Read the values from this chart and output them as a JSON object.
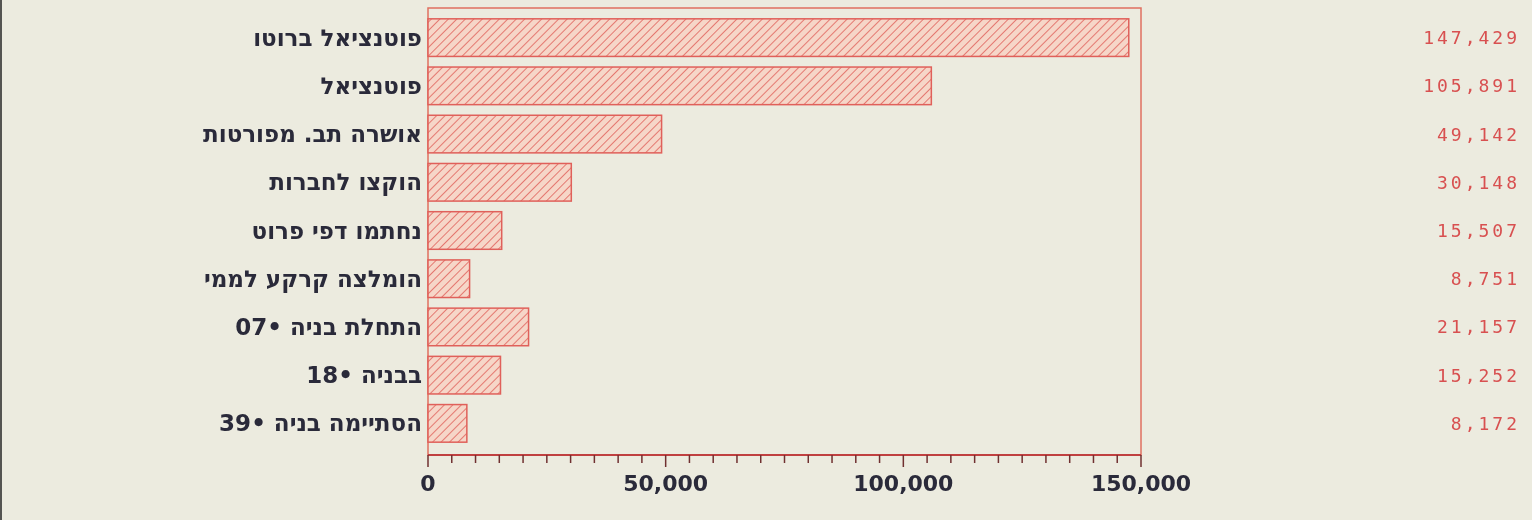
{
  "chart_data": {
    "type": "bar",
    "orientation": "horizontal",
    "categories": [
      "פוטנציאל ברוטו",
      "פוטנציאל",
      "אושרה תב. מפורטות",
      "הוקצו לחברות",
      "נחתמו דפי פרוט",
      "הומלצה קרקע לממי",
      "התחלת בניה •07",
      "בבניה •18",
      "הסתיימה בניה •39"
    ],
    "values": [
      147429,
      105891,
      49142,
      30148,
      15507,
      8751,
      21157,
      15252,
      8172
    ],
    "color": "#e0605a",
    "value_labels": [
      "147,429",
      "105,891",
      "49,142",
      "30,148",
      "15,507",
      "8,751",
      "21,157",
      "15,252",
      "8,172"
    ],
    "xlim": [
      0,
      150000
    ],
    "xticks": [
      0,
      {
        "value": 5000,
        "label": null
      },
      {
        "value": 10000,
        "label": null
      },
      {
        "value": 15000,
        "label": null
      },
      {
        "value": 20000,
        "label": null
      },
      {
        "value": 25000,
        "label": null
      },
      {
        "value": 30000,
        "label": null
      },
      {
        "value": 35000,
        "label": null
      },
      {
        "value": 40000,
        "label": null
      },
      {
        "value": 45000,
        "label": null
      },
      {
        "value": 50000,
        "label": "50,000"
      },
      {
        "value": 55000,
        "label": null
      },
      {
        "value": 60000,
        "label": null
      },
      {
        "value": 65000,
        "label": null
      },
      {
        "value": 70000,
        "label": null
      },
      {
        "value": 75000,
        "label": null
      },
      {
        "value": 80000,
        "label": null
      },
      {
        "value": 85000,
        "label": null
      },
      {
        "value": 90000,
        "label": null
      },
      {
        "value": 95000,
        "label": null
      },
      {
        "value": 100000,
        "label": "100,000"
      },
      {
        "value": 105000,
        "label": null
      },
      {
        "value": 110000,
        "label": null
      },
      {
        "value": 115000,
        "label": null
      },
      {
        "value": 120000,
        "label": null
      },
      {
        "value": 125000,
        "label": null
      },
      {
        "value": 130000,
        "label": null
      },
      {
        "value": 135000,
        "label": null
      },
      {
        "value": 140000,
        "label": null
      },
      {
        "value": 145000,
        "label": null
      },
      {
        "value": 150000,
        "label": "150,000"
      }
    ],
    "grid": false
  }
}
